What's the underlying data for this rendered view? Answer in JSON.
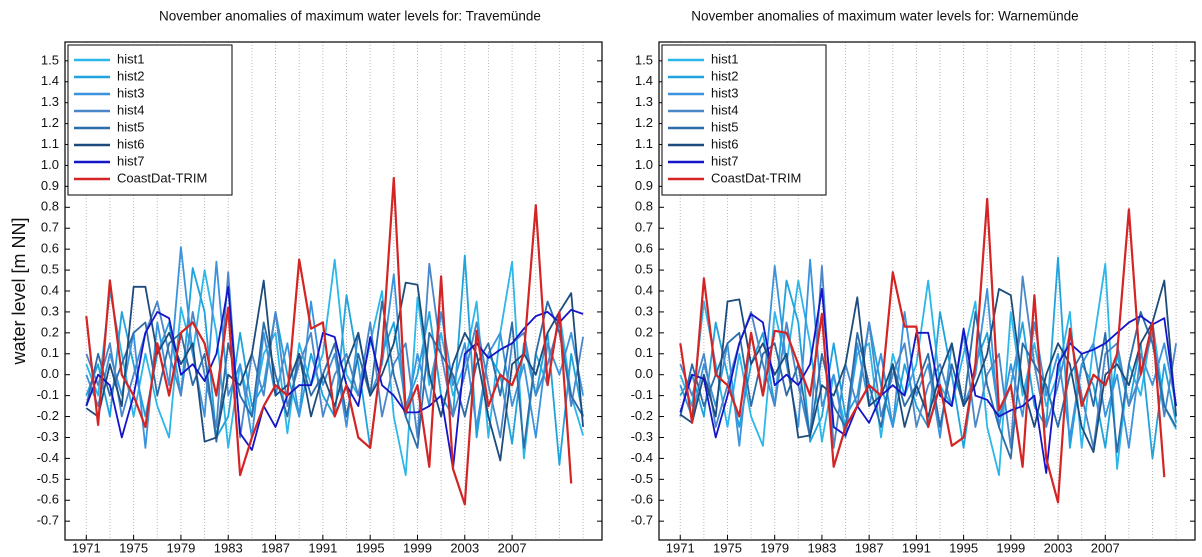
{
  "chart_data": [
    {
      "type": "line",
      "title": "November anomalies of maximum water levels for: Travemünde",
      "y_label": "water level [m NN]",
      "x": [
        1971,
        1972,
        1973,
        1974,
        1975,
        1976,
        1977,
        1978,
        1979,
        1980,
        1981,
        1982,
        1983,
        1984,
        1985,
        1986,
        1987,
        1988,
        1989,
        1990,
        1991,
        1992,
        1993,
        1994,
        1995,
        1996,
        1997,
        1998,
        1999,
        2000,
        2001,
        2002,
        2003,
        2004,
        2005,
        2006,
        2007,
        2008,
        2009,
        2010,
        2011,
        2012,
        2013
      ],
      "xlim": [
        1969.2,
        2014.6
      ],
      "ylim": [
        -0.79,
        1.59
      ],
      "xticks": [
        1971,
        1975,
        1979,
        1983,
        1987,
        1991,
        1995,
        1999,
        2003,
        2007
      ],
      "xgridlines": [
        1971,
        1973,
        1975,
        1977,
        1979,
        1981,
        1983,
        1985,
        1987,
        1989,
        1991,
        1993,
        1995,
        1997,
        1999,
        2001,
        2003,
        2005,
        2007,
        2009,
        2011,
        2013
      ],
      "yticks": [
        -0.7,
        -0.6,
        -0.5,
        -0.4,
        -0.3,
        -0.2,
        -0.1,
        {
          "value": 0,
          "label": "0.0"
        },
        0.1,
        0.2,
        0.3,
        0.4,
        0.5,
        0.6,
        0.7,
        0.8,
        0.9,
        {
          "value": 1,
          "label": "1.0"
        },
        1.1,
        1.2,
        1.3,
        1.4,
        1.5
      ],
      "legend": "upper left",
      "series": [
        {
          "name": "hist1",
          "color": "#2bb7ea",
          "values": [
            0.05,
            -0.1,
            0.4,
            0.1,
            -0.2,
            0.1,
            -0.15,
            -0.3,
            0.32,
            0.1,
            0.5,
            0.2,
            -0.35,
            0.05,
            -0.2,
            0.1,
            0.2,
            -0.28,
            0.15,
            -0.05,
            0.1,
            0.55,
            0.0,
            -0.1,
            0.15,
            0.4,
            -0.2,
            -0.48,
            0.37,
            -0.05,
            0.2,
            -0.1,
            0.05,
            0.35,
            -0.3,
            0.2,
            0.54,
            -0.4,
            0.1,
            -0.05,
            0.3,
            -0.1,
            -0.29
          ]
        },
        {
          "name": "hist2",
          "color": "#1fa3dc",
          "values": [
            -0.1,
            0.05,
            -0.2,
            0.3,
            0.05,
            -0.2,
            0.1,
            0.25,
            -0.1,
            0.51,
            0.3,
            -0.3,
            -0.2,
            0.2,
            -0.15,
            -0.05,
            0.3,
            0.0,
            -0.2,
            0.1,
            -0.1,
            -0.2,
            0.38,
            0.05,
            -0.35,
            0.1,
            0.25,
            -0.15,
            0.0,
            0.3,
            -0.1,
            -0.2,
            0.57,
            -0.3,
            0.1,
            0.0,
            -0.33,
            0.15,
            -0.1,
            0.2,
            -0.43,
            0.1,
            -0.2
          ]
        },
        {
          "name": "hist3",
          "color": "#3a93dc",
          "values": [
            0.0,
            -0.15,
            0.1,
            -0.1,
            0.2,
            -0.35,
            0.25,
            -0.05,
            0.61,
            0.1,
            -0.2,
            0.54,
            -0.1,
            0.05,
            -0.3,
            0.2,
            -0.1,
            0.15,
            -0.2,
            0.35,
            -0.05,
            0.1,
            -0.25,
            0.2,
            -0.1,
            0.05,
            0.48,
            -0.2,
            0.1,
            -0.15,
            0.3,
            -0.05,
            0.15,
            -0.25,
            0.1,
            0.2,
            -0.15,
            0.05,
            -0.3,
            0.15,
            0.0,
            0.2,
            -0.1
          ]
        },
        {
          "name": "hist4",
          "color": "#4a86c8",
          "values": [
            0.1,
            -0.05,
            0.15,
            -0.2,
            0.0,
            0.2,
            0.35,
            0.1,
            -0.1,
            0.3,
            0.0,
            -0.25,
            0.49,
            -0.3,
            0.1,
            -0.1,
            0.3,
            -0.15,
            0.05,
            0.2,
            -0.2,
            0.0,
            0.1,
            -0.1,
            0.25,
            -0.2,
            0.05,
            0.15,
            -0.3,
            0.53,
            0.1,
            -0.2,
            0.0,
            0.25,
            -0.05,
            -0.3,
            0.15,
            0.2,
            -0.1,
            0.05,
            0.25,
            -0.15,
            0.18
          ]
        },
        {
          "name": "hist5",
          "color": "#2c6ca8",
          "values": [
            -0.15,
            0.1,
            -0.1,
            0.05,
            0.2,
            0.25,
            -0.1,
            0.15,
            0.2,
            -0.05,
            0.1,
            -0.32,
            0.15,
            -0.1,
            -0.2,
            0.25,
            0.0,
            -0.2,
            0.1,
            -0.1,
            0.0,
            0.15,
            -0.2,
            0.1,
            -0.1,
            0.35,
            0.0,
            -0.2,
            -0.35,
            0.2,
            0.1,
            0.0,
            -0.2,
            0.05,
            0.15,
            -0.1,
            0.25,
            -0.35,
            0.1,
            0.35,
            0.2,
            -0.1,
            -0.2
          ]
        },
        {
          "name": "hist6",
          "color": "#1d4c7c",
          "values": [
            -0.16,
            -0.2,
            0.05,
            -0.15,
            0.42,
            0.42,
            0.1,
            0.2,
            0.05,
            0.15,
            -0.32,
            -0.3,
            0.0,
            -0.05,
            0.1,
            0.45,
            -0.1,
            -0.05,
            0.1,
            -0.2,
            0.0,
            -0.15,
            0.05,
            0.2,
            -0.1,
            0.0,
            0.15,
            0.44,
            0.43,
            0.0,
            -0.2,
            0.05,
            0.2,
            0.1,
            -0.2,
            -0.41,
            0.05,
            0.1,
            0.0,
            0.2,
            0.3,
            0.39,
            -0.25
          ]
        },
        {
          "name": "hist7",
          "color": "#1414c8",
          "values": [
            -0.15,
            0.0,
            -0.05,
            -0.3,
            -0.1,
            0.2,
            0.3,
            0.27,
            0.0,
            0.05,
            -0.03,
            0.1,
            0.42,
            -0.28,
            -0.36,
            -0.15,
            -0.25,
            -0.1,
            -0.05,
            -0.05,
            0.2,
            0.18,
            -0.05,
            -0.15,
            0.18,
            -0.05,
            -0.1,
            -0.18,
            -0.18,
            -0.15,
            -0.1,
            -0.45,
            0.1,
            0.15,
            0.08,
            0.12,
            0.15,
            0.22,
            0.28,
            0.3,
            0.25,
            0.31,
            0.29
          ]
        },
        {
          "name": "CoastDat-TRIM",
          "color": "#d42424",
          "values": [
            0.28,
            -0.24,
            0.45,
            0.0,
            -0.1,
            -0.25,
            0.15,
            -0.1,
            0.2,
            0.25,
            0.15,
            -0.1,
            0.32,
            -0.48,
            -0.3,
            -0.15,
            -0.05,
            -0.1,
            0.55,
            0.22,
            0.25,
            -0.2,
            -0.05,
            -0.3,
            -0.35,
            0.1,
            0.94,
            -0.18,
            -0.05,
            -0.44,
            0.47,
            -0.45,
            -0.62,
            0.21,
            -0.15,
            0.0,
            -0.05,
            0.1,
            0.81,
            -0.05,
            0.3,
            -0.52,
            null
          ]
        }
      ]
    },
    {
      "type": "line",
      "title": "November anomalies of maximum water levels for: Warnemünde",
      "x": [
        1971,
        1972,
        1973,
        1974,
        1975,
        1976,
        1977,
        1978,
        1979,
        1980,
        1981,
        1982,
        1983,
        1984,
        1985,
        1986,
        1987,
        1988,
        1989,
        1990,
        1991,
        1992,
        1993,
        1994,
        1995,
        1996,
        1997,
        1998,
        1999,
        2000,
        2001,
        2002,
        2003,
        2004,
        2005,
        2006,
        2007,
        2008,
        2009,
        2010,
        2011,
        2012,
        2013
      ],
      "xlim": [
        1969.2,
        2014.6
      ],
      "ylim": [
        -0.79,
        1.59
      ],
      "xticks": [
        1971,
        1975,
        1979,
        1983,
        1987,
        1991,
        1995,
        1999,
        2003,
        2007
      ],
      "xgridlines": [
        1971,
        1973,
        1975,
        1977,
        1979,
        1981,
        1983,
        1985,
        1987,
        1989,
        1991,
        1993,
        1995,
        1997,
        1999,
        2001,
        2003,
        2005,
        2007,
        2009,
        2011,
        2013
      ],
      "yticks": [
        -0.7,
        -0.6,
        -0.5,
        -0.4,
        -0.3,
        -0.2,
        -0.1,
        {
          "value": 0,
          "label": "0.0"
        },
        0.1,
        0.2,
        0.3,
        0.4,
        0.5,
        0.6,
        0.7,
        0.8,
        0.9,
        {
          "value": 1,
          "label": "1.0"
        },
        1.1,
        1.2,
        1.3,
        1.4,
        1.5
      ],
      "legend": "upper left",
      "series": [
        {
          "name": "hist1",
          "color": "#2bb7ea",
          "values": [
            0.0,
            -0.15,
            0.35,
            0.05,
            -0.25,
            0.1,
            -0.2,
            -0.34,
            0.3,
            0.05,
            0.45,
            0.15,
            -0.32,
            0.0,
            -0.25,
            0.1,
            0.15,
            -0.3,
            0.1,
            -0.1,
            0.05,
            0.45,
            -0.05,
            -0.15,
            0.1,
            0.35,
            -0.25,
            -0.48,
            0.3,
            -0.1,
            0.15,
            -0.15,
            0.0,
            0.3,
            -0.35,
            0.15,
            0.53,
            -0.45,
            0.05,
            -0.1,
            0.25,
            -0.15,
            -0.26
          ]
        },
        {
          "name": "hist2",
          "color": "#1fa3dc",
          "values": [
            -0.1,
            0.0,
            -0.2,
            0.25,
            0.0,
            -0.25,
            0.05,
            0.2,
            -0.15,
            0.45,
            0.25,
            -0.32,
            -0.2,
            0.15,
            -0.2,
            -0.1,
            0.25,
            -0.05,
            -0.25,
            0.05,
            -0.15,
            -0.25,
            0.3,
            0.0,
            -0.35,
            0.05,
            0.2,
            -0.2,
            -0.05,
            0.25,
            -0.15,
            -0.25,
            0.56,
            -0.35,
            0.05,
            -0.05,
            -0.35,
            0.1,
            -0.15,
            0.15,
            -0.4,
            0.05,
            -0.23
          ]
        },
        {
          "name": "hist3",
          "color": "#3a93dc",
          "values": [
            -0.05,
            -0.2,
            0.05,
            -0.15,
            0.15,
            -0.34,
            0.2,
            -0.1,
            0.52,
            0.05,
            -0.25,
            0.55,
            -0.15,
            0.0,
            -0.3,
            0.15,
            -0.15,
            0.1,
            -0.25,
            0.3,
            -0.1,
            0.05,
            -0.3,
            0.15,
            -0.15,
            0.0,
            0.41,
            -0.25,
            0.05,
            -0.2,
            0.25,
            -0.1,
            0.1,
            -0.3,
            0.05,
            0.15,
            -0.2,
            0.0,
            -0.35,
            0.1,
            -0.05,
            0.15,
            -0.15
          ]
        },
        {
          "name": "hist4",
          "color": "#4a86c8",
          "values": [
            0.05,
            -0.1,
            0.1,
            -0.25,
            -0.05,
            0.15,
            0.3,
            0.05,
            -0.15,
            0.25,
            -0.05,
            -0.3,
            0.52,
            -0.35,
            0.05,
            -0.15,
            0.25,
            -0.2,
            0.0,
            0.15,
            -0.25,
            -0.05,
            0.05,
            -0.15,
            0.2,
            -0.25,
            0.0,
            0.1,
            -0.35,
            0.47,
            0.05,
            -0.25,
            -0.05,
            0.2,
            -0.1,
            -0.35,
            0.1,
            0.15,
            -0.15,
            0.0,
            0.2,
            -0.2,
            0.15
          ]
        },
        {
          "name": "hist5",
          "color": "#2c6ca8",
          "values": [
            -0.2,
            0.05,
            -0.15,
            0.0,
            0.15,
            0.2,
            -0.15,
            0.1,
            0.15,
            -0.1,
            0.05,
            -0.3,
            0.1,
            -0.15,
            -0.25,
            0.2,
            -0.05,
            -0.25,
            0.05,
            -0.15,
            -0.05,
            0.1,
            -0.25,
            0.05,
            -0.15,
            0.3,
            -0.05,
            -0.25,
            -0.4,
            0.15,
            0.05,
            -0.05,
            -0.25,
            0.0,
            0.1,
            -0.15,
            0.2,
            -0.37,
            0.05,
            0.3,
            0.15,
            -0.15,
            -0.25
          ]
        },
        {
          "name": "hist6",
          "color": "#1d4c7c",
          "values": [
            -0.19,
            -0.23,
            0.0,
            -0.2,
            0.35,
            0.36,
            0.05,
            0.15,
            0.0,
            0.1,
            -0.3,
            -0.29,
            -0.05,
            -0.1,
            0.05,
            0.37,
            -0.15,
            -0.1,
            0.05,
            -0.25,
            -0.05,
            -0.2,
            0.0,
            0.15,
            -0.15,
            -0.05,
            0.1,
            0.41,
            0.38,
            -0.05,
            -0.25,
            0.0,
            0.15,
            0.05,
            -0.25,
            -0.37,
            0.0,
            0.05,
            -0.05,
            0.15,
            0.25,
            0.45,
            -0.2
          ]
        },
        {
          "name": "hist7",
          "color": "#1414c8",
          "values": [
            -0.18,
            0.0,
            -0.02,
            -0.3,
            -0.1,
            0.15,
            0.29,
            0.25,
            -0.05,
            0.0,
            -0.05,
            0.05,
            0.41,
            -0.25,
            -0.29,
            -0.15,
            -0.23,
            -0.1,
            -0.05,
            -0.1,
            0.2,
            0.2,
            -0.1,
            -0.15,
            0.22,
            -0.1,
            -0.12,
            -0.2,
            -0.17,
            -0.15,
            -0.1,
            -0.47,
            0.05,
            0.15,
            0.1,
            0.12,
            0.15,
            0.2,
            0.25,
            0.28,
            0.24,
            0.27,
            -0.15
          ]
        },
        {
          "name": "CoastDat-TRIM",
          "color": "#d42424",
          "values": [
            0.15,
            -0.23,
            0.46,
            0.0,
            -0.05,
            -0.2,
            0.2,
            -0.1,
            0.21,
            0.2,
            0.05,
            -0.1,
            0.29,
            -0.44,
            -0.25,
            -0.15,
            -0.05,
            -0.1,
            0.49,
            0.23,
            0.23,
            -0.25,
            -0.05,
            -0.34,
            -0.3,
            0.05,
            0.84,
            -0.17,
            -0.05,
            -0.44,
            0.38,
            -0.4,
            -0.61,
            0.22,
            -0.15,
            0.0,
            -0.05,
            0.1,
            0.79,
            0.0,
            0.25,
            -0.49,
            null
          ]
        }
      ]
    }
  ]
}
